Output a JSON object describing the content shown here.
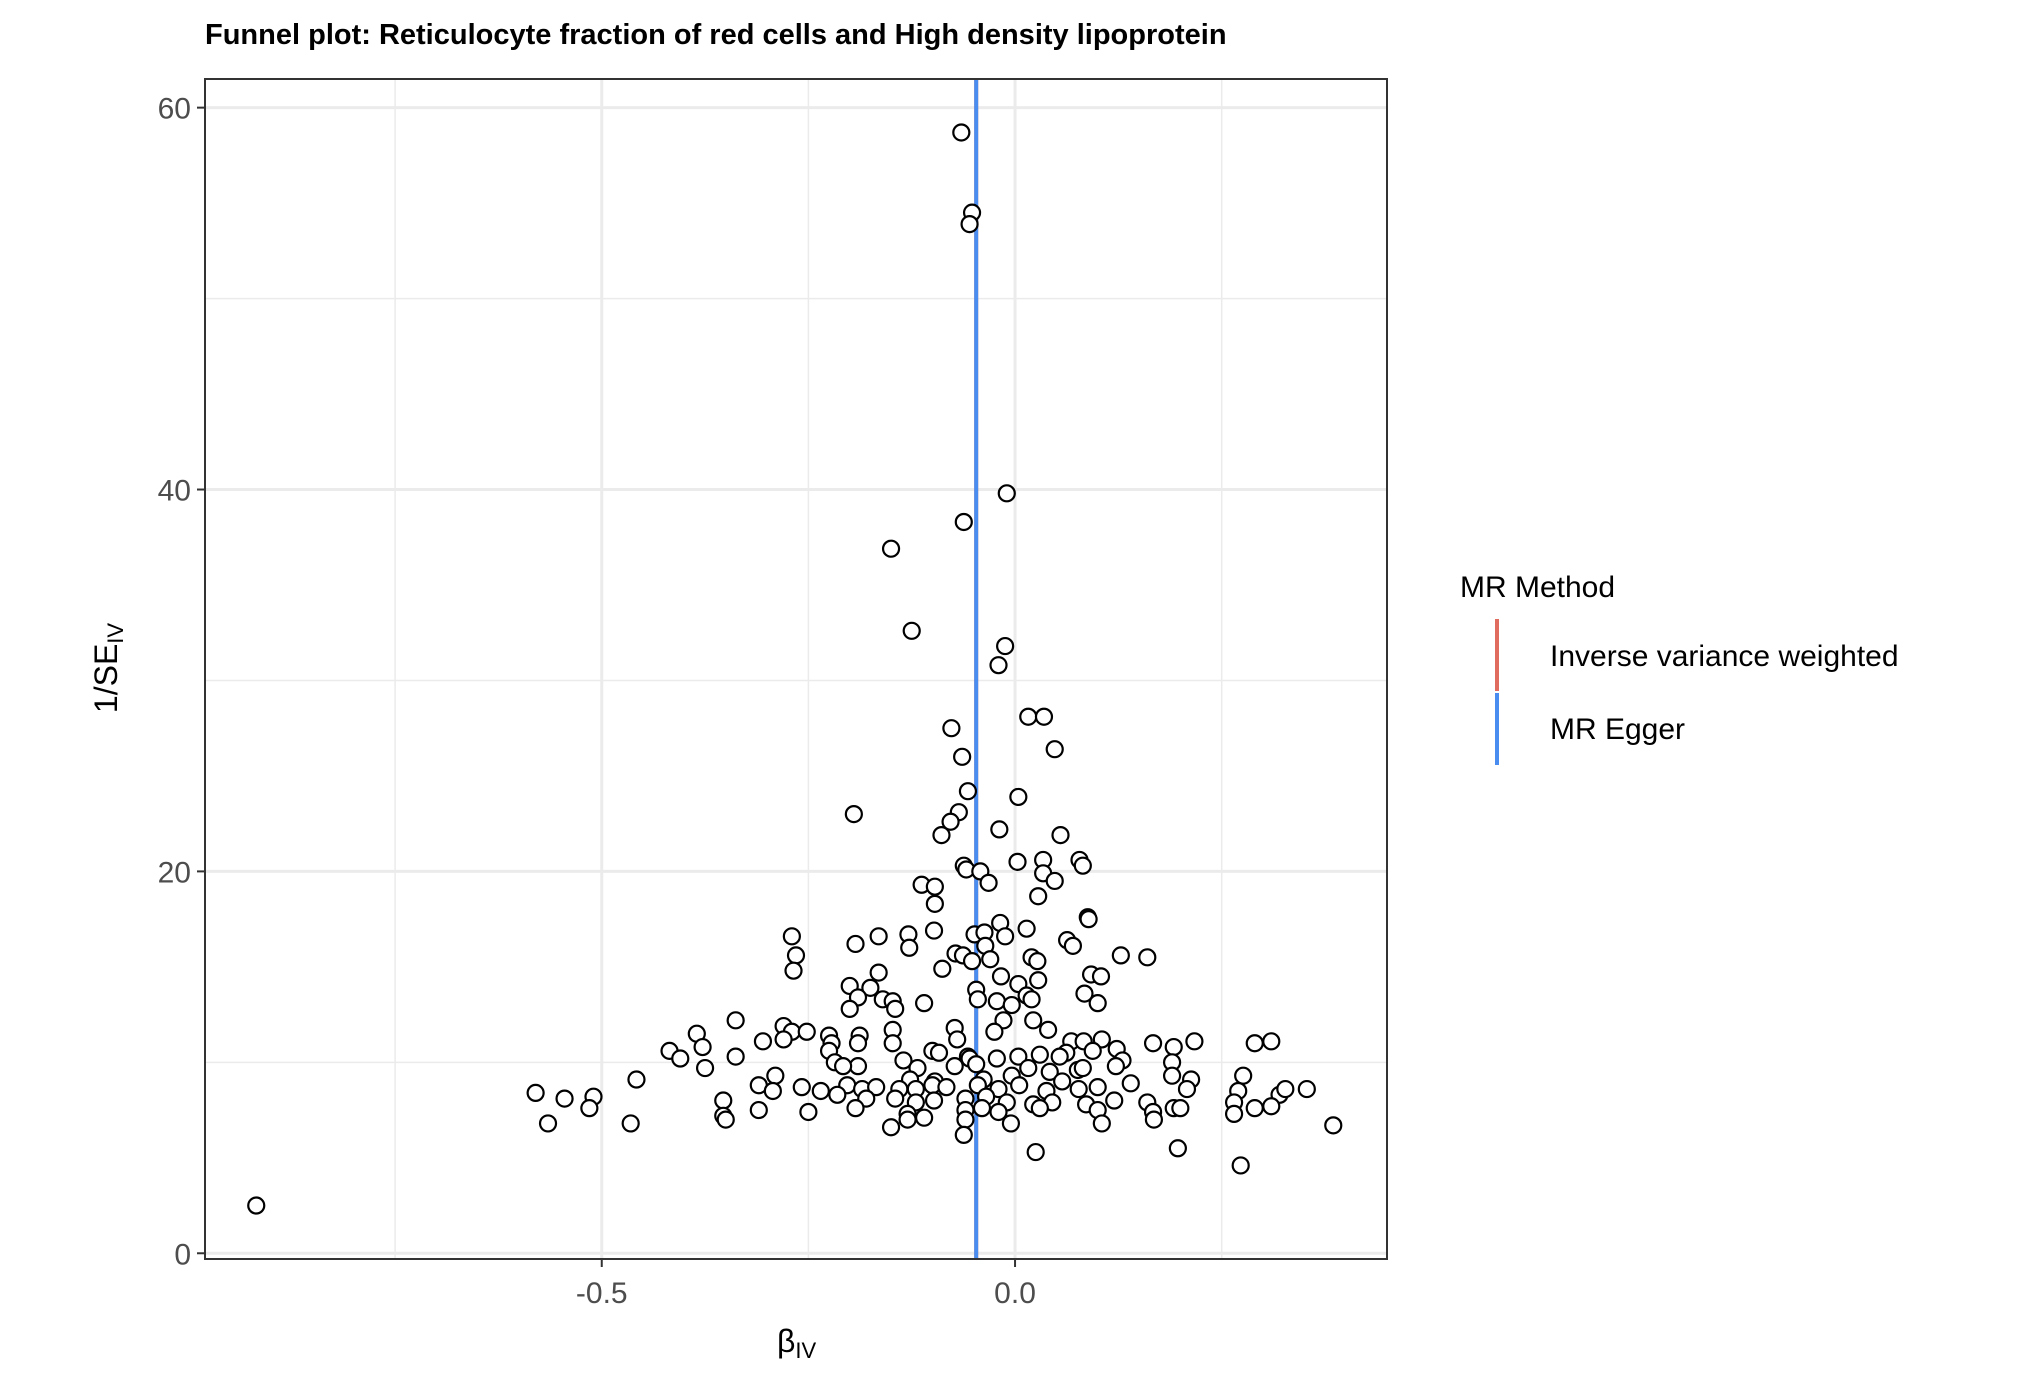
{
  "chart_data": {
    "type": "scatter",
    "title": "Funnel plot: Reticulocyte fraction of red cells and High density lipoprotein",
    "xlabel": "β",
    "xlabel_sub": "IV",
    "ylabel": "1/SE",
    "ylabel_sub": "IV",
    "xlim": [
      -0.98,
      0.45
    ],
    "ylim": [
      -0.3,
      61.5
    ],
    "x_ticks": [
      -0.5,
      0.0
    ],
    "x_tick_labels": [
      "-0.5",
      "0.0"
    ],
    "y_ticks": [
      0,
      20,
      40,
      60
    ],
    "y_tick_labels": [
      "0",
      "20",
      "40",
      "60"
    ],
    "grid": true,
    "legend": {
      "title": "MR Method",
      "position": "right",
      "entries": [
        {
          "label": "Inverse variance weighted",
          "color": "#e06c5f"
        },
        {
          "label": "MR Egger",
          "color": "#4a8df0"
        }
      ]
    },
    "lines": [
      {
        "method": "Inverse variance weighted",
        "x": -0.047,
        "color": "#e06c5f"
      },
      {
        "method": "MR Egger",
        "x": -0.047,
        "color": "#4a8df0"
      }
    ],
    "points": [
      [
        -0.065,
        58.7
      ],
      [
        -0.052,
        54.5
      ],
      [
        -0.055,
        53.9
      ],
      [
        -0.01,
        39.8
      ],
      [
        -0.062,
        38.3
      ],
      [
        -0.15,
        36.9
      ],
      [
        -0.125,
        32.6
      ],
      [
        -0.012,
        31.8
      ],
      [
        -0.02,
        30.8
      ],
      [
        -0.077,
        27.5
      ],
      [
        0.016,
        28.1
      ],
      [
        0.035,
        28.1
      ],
      [
        -0.064,
        26.0
      ],
      [
        0.048,
        26.4
      ],
      [
        -0.057,
        24.2
      ],
      [
        0.004,
        23.9
      ],
      [
        -0.195,
        23.0
      ],
      [
        -0.068,
        23.1
      ],
      [
        -0.078,
        22.6
      ],
      [
        -0.089,
        21.9
      ],
      [
        -0.019,
        22.2
      ],
      [
        0.055,
        21.9
      ],
      [
        -0.062,
        20.3
      ],
      [
        -0.059,
        20.1
      ],
      [
        -0.042,
        20.0
      ],
      [
        0.003,
        20.5
      ],
      [
        0.034,
        20.6
      ],
      [
        0.078,
        20.6
      ],
      [
        0.082,
        20.3
      ],
      [
        -0.032,
        19.4
      ],
      [
        0.034,
        19.9
      ],
      [
        0.048,
        19.5
      ],
      [
        -0.113,
        19.3
      ],
      [
        -0.097,
        19.2
      ],
      [
        -0.097,
        18.3
      ],
      [
        0.028,
        18.7
      ],
      [
        0.088,
        17.6
      ],
      [
        0.089,
        17.5
      ],
      [
        -0.018,
        17.3
      ],
      [
        -0.27,
        16.6
      ],
      [
        -0.165,
        16.6
      ],
      [
        -0.129,
        16.7
      ],
      [
        -0.098,
        16.9
      ],
      [
        -0.049,
        16.7
      ],
      [
        -0.037,
        16.8
      ],
      [
        -0.012,
        16.6
      ],
      [
        0.014,
        17.0
      ],
      [
        -0.193,
        16.2
      ],
      [
        -0.128,
        16.0
      ],
      [
        -0.036,
        16.1
      ],
      [
        0.063,
        16.4
      ],
      [
        0.07,
        16.1
      ],
      [
        -0.265,
        15.6
      ],
      [
        -0.072,
        15.7
      ],
      [
        -0.063,
        15.6
      ],
      [
        -0.052,
        15.3
      ],
      [
        -0.03,
        15.4
      ],
      [
        0.02,
        15.5
      ],
      [
        0.027,
        15.3
      ],
      [
        0.128,
        15.6
      ],
      [
        0.16,
        15.5
      ],
      [
        -0.268,
        14.8
      ],
      [
        -0.165,
        14.7
      ],
      [
        -0.088,
        14.9
      ],
      [
        -0.017,
        14.5
      ],
      [
        0.028,
        14.3
      ],
      [
        0.092,
        14.6
      ],
      [
        0.104,
        14.5
      ],
      [
        -0.2,
        14.0
      ],
      [
        -0.175,
        13.9
      ],
      [
        -0.047,
        13.8
      ],
      [
        0.004,
        14.1
      ],
      [
        0.014,
        13.5
      ],
      [
        0.084,
        13.6
      ],
      [
        0.1,
        13.1
      ],
      [
        -0.19,
        13.4
      ],
      [
        -0.16,
        13.3
      ],
      [
        -0.148,
        13.2
      ],
      [
        -0.11,
        13.1
      ],
      [
        -0.045,
        13.3
      ],
      [
        -0.022,
        13.2
      ],
      [
        -0.004,
        13.0
      ],
      [
        0.02,
        13.3
      ],
      [
        -0.2,
        12.8
      ],
      [
        -0.145,
        12.8
      ],
      [
        -0.338,
        12.2
      ],
      [
        -0.014,
        12.2
      ],
      [
        0.022,
        12.2
      ],
      [
        -0.385,
        11.5
      ],
      [
        -0.28,
        11.9
      ],
      [
        -0.27,
        11.6
      ],
      [
        -0.252,
        11.6
      ],
      [
        -0.225,
        11.4
      ],
      [
        -0.188,
        11.4
      ],
      [
        -0.148,
        11.7
      ],
      [
        -0.073,
        11.8
      ],
      [
        -0.025,
        11.6
      ],
      [
        0.04,
        11.7
      ],
      [
        -0.305,
        11.1
      ],
      [
        -0.28,
        11.2
      ],
      [
        -0.222,
        11.0
      ],
      [
        -0.19,
        11.0
      ],
      [
        -0.148,
        11.0
      ],
      [
        -0.07,
        11.2
      ],
      [
        0.068,
        11.1
      ],
      [
        0.083,
        11.1
      ],
      [
        0.105,
        11.2
      ],
      [
        0.167,
        11.0
      ],
      [
        0.192,
        10.8
      ],
      [
        0.217,
        11.1
      ],
      [
        0.29,
        11.0
      ],
      [
        0.31,
        11.1
      ],
      [
        -0.418,
        10.6
      ],
      [
        -0.378,
        10.8
      ],
      [
        -0.405,
        10.2
      ],
      [
        -0.338,
        10.3
      ],
      [
        -0.225,
        10.6
      ],
      [
        -0.1,
        10.6
      ],
      [
        -0.092,
        10.5
      ],
      [
        -0.057,
        10.3
      ],
      [
        0.004,
        10.3
      ],
      [
        0.03,
        10.4
      ],
      [
        0.062,
        10.5
      ],
      [
        0.094,
        10.6
      ],
      [
        0.123,
        10.7
      ],
      [
        0.13,
        10.1
      ],
      [
        0.19,
        10.0
      ],
      [
        -0.218,
        10.0
      ],
      [
        -0.19,
        9.8
      ],
      [
        -0.135,
        10.1
      ],
      [
        -0.073,
        9.8
      ],
      [
        -0.055,
        10.2
      ],
      [
        -0.022,
        10.2
      ],
      [
        -0.375,
        9.7
      ],
      [
        -0.208,
        9.8
      ],
      [
        -0.118,
        9.7
      ],
      [
        -0.047,
        9.9
      ],
      [
        0.016,
        9.7
      ],
      [
        0.054,
        10.3
      ],
      [
        0.076,
        9.6
      ],
      [
        0.082,
        9.7
      ],
      [
        0.122,
        9.8
      ],
      [
        -0.29,
        9.3
      ],
      [
        -0.458,
        9.1
      ],
      [
        -0.127,
        9.1
      ],
      [
        -0.097,
        9.0
      ],
      [
        -0.038,
        9.1
      ],
      [
        -0.004,
        9.3
      ],
      [
        0.042,
        9.5
      ],
      [
        0.057,
        9.0
      ],
      [
        0.19,
        9.3
      ],
      [
        0.213,
        9.1
      ],
      [
        0.276,
        9.3
      ],
      [
        -0.31,
        8.8
      ],
      [
        -0.293,
        8.5
      ],
      [
        -0.258,
        8.7
      ],
      [
        -0.235,
        8.5
      ],
      [
        -0.203,
        8.8
      ],
      [
        -0.185,
        8.6
      ],
      [
        -0.168,
        8.7
      ],
      [
        -0.14,
        8.6
      ],
      [
        -0.12,
        8.6
      ],
      [
        -0.1,
        8.8
      ],
      [
        -0.083,
        8.7
      ],
      [
        -0.045,
        8.8
      ],
      [
        -0.02,
        8.6
      ],
      [
        0.005,
        8.8
      ],
      [
        0.038,
        8.5
      ],
      [
        0.077,
        8.6
      ],
      [
        0.1,
        8.7
      ],
      [
        0.14,
        8.9
      ],
      [
        0.208,
        8.6
      ],
      [
        0.27,
        8.5
      ],
      [
        0.32,
        8.3
      ],
      [
        0.327,
        8.6
      ],
      [
        0.353,
        8.6
      ],
      [
        -0.58,
        8.4
      ],
      [
        -0.545,
        8.1
      ],
      [
        -0.51,
        8.2
      ],
      [
        -0.353,
        8.0
      ],
      [
        -0.215,
        8.3
      ],
      [
        -0.18,
        8.1
      ],
      [
        -0.145,
        8.1
      ],
      [
        -0.12,
        7.9
      ],
      [
        -0.098,
        8.0
      ],
      [
        -0.06,
        8.1
      ],
      [
        -0.035,
        8.2
      ],
      [
        -0.01,
        7.9
      ],
      [
        0.022,
        7.8
      ],
      [
        0.045,
        7.9
      ],
      [
        0.086,
        7.8
      ],
      [
        0.12,
        8.0
      ],
      [
        0.16,
        7.9
      ],
      [
        0.192,
        7.6
      ],
      [
        0.265,
        7.9
      ],
      [
        0.29,
        7.6
      ],
      [
        0.31,
        7.7
      ],
      [
        -0.515,
        7.6
      ],
      [
        -0.31,
        7.5
      ],
      [
        -0.25,
        7.4
      ],
      [
        -0.193,
        7.6
      ],
      [
        -0.13,
        7.3
      ],
      [
        -0.11,
        7.1
      ],
      [
        -0.06,
        7.5
      ],
      [
        -0.04,
        7.6
      ],
      [
        -0.02,
        7.4
      ],
      [
        0.03,
        7.6
      ],
      [
        0.1,
        7.5
      ],
      [
        0.167,
        7.4
      ],
      [
        0.2,
        7.6
      ],
      [
        -0.565,
        6.8
      ],
      [
        -0.465,
        6.8
      ],
      [
        -0.353,
        7.2
      ],
      [
        -0.35,
        7.0
      ],
      [
        -0.15,
        6.6
      ],
      [
        -0.13,
        7.0
      ],
      [
        -0.06,
        7.0
      ],
      [
        -0.005,
        6.8
      ],
      [
        0.105,
        6.8
      ],
      [
        0.168,
        7.0
      ],
      [
        0.265,
        7.3
      ],
      [
        0.385,
        6.7
      ],
      [
        -0.062,
        6.2
      ],
      [
        0.025,
        5.3
      ],
      [
        0.197,
        5.5
      ],
      [
        0.273,
        4.6
      ],
      [
        -0.918,
        2.5
      ]
    ]
  }
}
